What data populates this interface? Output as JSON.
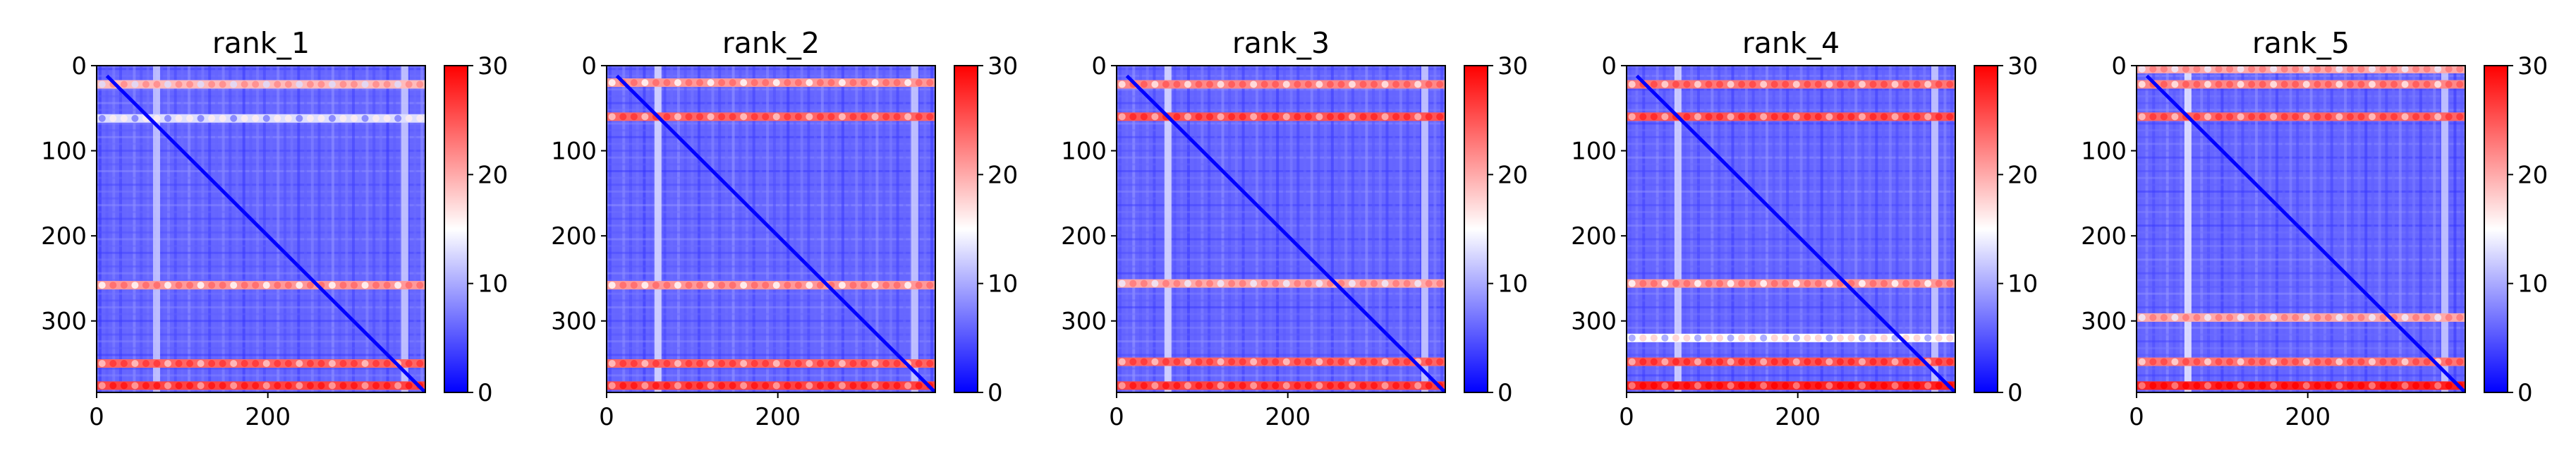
{
  "chart_data": [
    {
      "type": "heatmap",
      "title": "rank_1",
      "xlim": [
        0,
        384
      ],
      "ylim": [
        384,
        0
      ],
      "xticks": [
        0,
        200
      ],
      "yticks": [
        0,
        100,
        200,
        300
      ],
      "colorbar": {
        "min": 0,
        "max": 30,
        "ticks": [
          0,
          10,
          20,
          30
        ],
        "colormap": "bwr"
      },
      "band_rows": [
        {
          "row": 22,
          "value": 19
        },
        {
          "row": 62,
          "value": 13
        },
        {
          "row": 258,
          "value": 21
        },
        {
          "row": 350,
          "value": 24
        },
        {
          "row": 376,
          "value": 26
        }
      ],
      "band_cols": [
        {
          "col": 70,
          "value": 12
        },
        {
          "col": 360,
          "value": 12
        }
      ],
      "diagonal_value": 0,
      "background_value": 6
    },
    {
      "type": "heatmap",
      "title": "rank_2",
      "xlim": [
        0,
        384
      ],
      "ylim": [
        384,
        0
      ],
      "xticks": [
        0,
        200
      ],
      "yticks": [
        0,
        100,
        200,
        300
      ],
      "colorbar": {
        "min": 0,
        "max": 30,
        "ticks": [
          0,
          10,
          20,
          30
        ],
        "colormap": "bwr"
      },
      "band_rows": [
        {
          "row": 20,
          "value": 21
        },
        {
          "row": 60,
          "value": 24
        },
        {
          "row": 258,
          "value": 21
        },
        {
          "row": 350,
          "value": 24
        },
        {
          "row": 376,
          "value": 26
        }
      ],
      "band_cols": [
        {
          "col": 60,
          "value": 13
        },
        {
          "col": 360,
          "value": 12
        }
      ],
      "diagonal_value": 0,
      "background_value": 6
    },
    {
      "type": "heatmap",
      "title": "rank_3",
      "xlim": [
        0,
        384
      ],
      "ylim": [
        384,
        0
      ],
      "xticks": [
        0,
        200
      ],
      "yticks": [
        0,
        100,
        200,
        300
      ],
      "colorbar": {
        "min": 0,
        "max": 30,
        "ticks": [
          0,
          10,
          20,
          30
        ],
        "colormap": "bwr"
      },
      "band_rows": [
        {
          "row": 22,
          "value": 22
        },
        {
          "row": 60,
          "value": 25
        },
        {
          "row": 256,
          "value": 20
        },
        {
          "row": 348,
          "value": 24
        },
        {
          "row": 376,
          "value": 26
        }
      ],
      "band_cols": [
        {
          "col": 60,
          "value": 13
        },
        {
          "col": 360,
          "value": 12
        }
      ],
      "diagonal_value": 0,
      "background_value": 6
    },
    {
      "type": "heatmap",
      "title": "rank_4",
      "xlim": [
        0,
        384
      ],
      "ylim": [
        384,
        0
      ],
      "xticks": [
        0,
        200
      ],
      "yticks": [
        0,
        100,
        200,
        300
      ],
      "colorbar": {
        "min": 0,
        "max": 30,
        "ticks": [
          0,
          10,
          20,
          30
        ],
        "colormap": "bwr"
      },
      "band_rows": [
        {
          "row": 22,
          "value": 23
        },
        {
          "row": 60,
          "value": 25
        },
        {
          "row": 256,
          "value": 21
        },
        {
          "row": 320,
          "value": 15
        },
        {
          "row": 348,
          "value": 25
        },
        {
          "row": 376,
          "value": 28
        }
      ],
      "band_cols": [
        {
          "col": 60,
          "value": 13
        },
        {
          "col": 360,
          "value": 12
        }
      ],
      "diagonal_value": 0,
      "background_value": 6
    },
    {
      "type": "heatmap",
      "title": "rank_5",
      "xlim": [
        0,
        384
      ],
      "ylim": [
        384,
        0
      ],
      "xticks": [
        0,
        200
      ],
      "yticks": [
        0,
        100,
        200,
        300
      ],
      "colorbar": {
        "min": 0,
        "max": 30,
        "ticks": [
          0,
          10,
          20,
          30
        ],
        "colormap": "bwr"
      },
      "band_rows": [
        {
          "row": 4,
          "value": 20
        },
        {
          "row": 22,
          "value": 22
        },
        {
          "row": 60,
          "value": 24
        },
        {
          "row": 296,
          "value": 20
        },
        {
          "row": 348,
          "value": 23
        },
        {
          "row": 376,
          "value": 28
        }
      ],
      "band_cols": [
        {
          "col": 60,
          "value": 14
        },
        {
          "col": 360,
          "value": 12
        }
      ],
      "diagonal_value": 0,
      "background_value": 6
    }
  ]
}
